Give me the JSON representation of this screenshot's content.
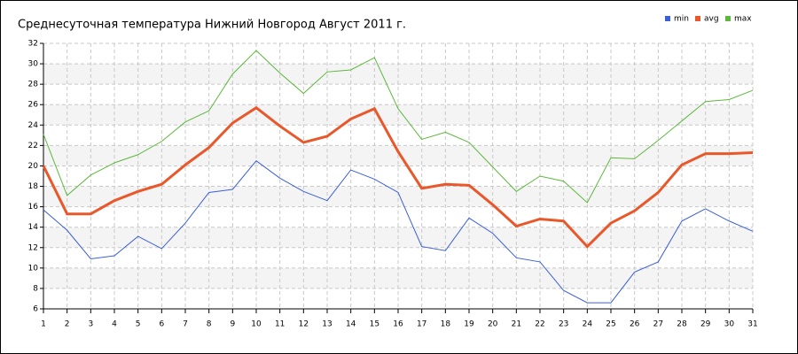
{
  "chart_data": {
    "type": "line",
    "title": "Среднесуточная температура Нижний Новгород  Август 2011 г.",
    "x": [
      1,
      2,
      3,
      4,
      5,
      6,
      7,
      8,
      9,
      10,
      11,
      12,
      13,
      14,
      15,
      16,
      17,
      18,
      19,
      20,
      21,
      22,
      23,
      24,
      25,
      26,
      27,
      28,
      29,
      30,
      31
    ],
    "xlim": [
      1,
      31
    ],
    "xticks": [
      1,
      2,
      3,
      4,
      5,
      6,
      7,
      8,
      9,
      10,
      11,
      12,
      13,
      14,
      15,
      16,
      17,
      18,
      19,
      20,
      21,
      22,
      23,
      24,
      25,
      26,
      27,
      28,
      29,
      30,
      31
    ],
    "ylim": [
      6,
      32
    ],
    "yticks": [
      6,
      8,
      10,
      12,
      14,
      16,
      18,
      20,
      22,
      24,
      26,
      28,
      30,
      32
    ],
    "grid": true,
    "legend": "top-right",
    "series": [
      {
        "name": "min",
        "color": "#3b5fd6",
        "values": [
          15.7,
          13.7,
          10.9,
          11.2,
          13.1,
          11.9,
          14.4,
          17.4,
          17.7,
          20.5,
          18.8,
          17.5,
          16.6,
          19.6,
          18.7,
          17.4,
          12.1,
          11.7,
          14.9,
          13.4,
          11.0,
          10.6,
          7.8,
          6.6,
          6.6,
          9.6,
          10.6,
          14.6,
          15.8,
          14.6,
          13.6
        ]
      },
      {
        "name": "avg",
        "color": "#e8582a",
        "values": [
          20.0,
          15.3,
          15.3,
          16.6,
          17.5,
          18.2,
          20.1,
          21.8,
          24.2,
          25.7,
          23.9,
          22.3,
          22.9,
          24.6,
          25.6,
          21.4,
          17.8,
          18.2,
          18.1,
          16.2,
          14.1,
          14.8,
          14.6,
          12.1,
          14.4,
          15.6,
          17.4,
          20.1,
          21.2,
          21.2,
          21.3
        ]
      },
      {
        "name": "max",
        "color": "#5cb83c",
        "values": [
          23.1,
          17.1,
          19.1,
          20.3,
          21.1,
          22.4,
          24.3,
          25.4,
          29.0,
          31.3,
          29.1,
          27.1,
          29.2,
          29.4,
          30.6,
          25.6,
          22.6,
          23.3,
          22.3,
          19.9,
          17.5,
          19.0,
          18.5,
          16.4,
          20.8,
          20.7,
          22.5,
          24.4,
          26.3,
          26.5,
          27.4
        ]
      }
    ]
  }
}
